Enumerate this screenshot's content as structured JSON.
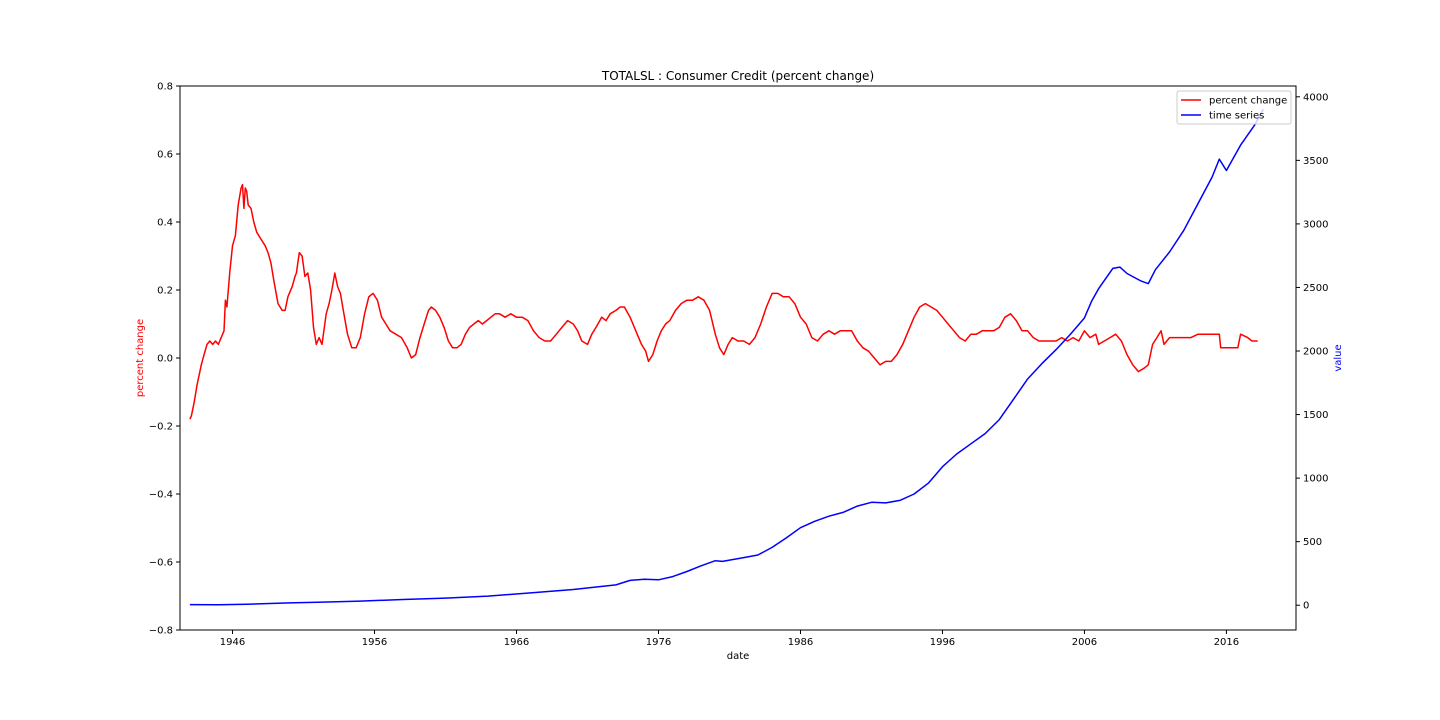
{
  "chart_data": {
    "type": "line",
    "title": "TOTALSL :  Consumer Credit (percent change)",
    "xlabel": "date",
    "y_left_label": "percent change",
    "y_right_label": "value",
    "x_ticks": [
      "1946",
      "1956",
      "1966",
      "1976",
      "1986",
      "1996",
      "2006",
      "2016"
    ],
    "y_left_ticks": [
      "0.8",
      "0.6",
      "0.4",
      "0.2",
      "0.0",
      "−0.2",
      "−0.4",
      "−0.6",
      "−0.8"
    ],
    "y_right_ticks": [
      "0",
      "500",
      "1000",
      "1500",
      "2000",
      "2500",
      "3000",
      "3500",
      "4000"
    ],
    "xlim": [
      1942.3,
      2020.9
    ],
    "y_left_lim": [
      -0.8,
      0.8
    ],
    "y_right_lim": [
      -195,
      4085
    ],
    "legend_position": "upper-right",
    "colors": {
      "percent_change": "#ff0000",
      "time_series": "#0000ff"
    },
    "series": [
      {
        "name": "percent change",
        "axis": "left",
        "points": [
          [
            1943.0,
            -0.18
          ],
          [
            1943.1,
            -0.17
          ],
          [
            1943.3,
            -0.13
          ],
          [
            1943.5,
            -0.08
          ],
          [
            1943.8,
            -0.02
          ],
          [
            1944.0,
            0.01
          ],
          [
            1944.2,
            0.04
          ],
          [
            1944.4,
            0.05
          ],
          [
            1944.6,
            0.04
          ],
          [
            1944.8,
            0.05
          ],
          [
            1945.0,
            0.04
          ],
          [
            1945.2,
            0.06
          ],
          [
            1945.4,
            0.08
          ],
          [
            1945.5,
            0.17
          ],
          [
            1945.6,
            0.15
          ],
          [
            1945.8,
            0.25
          ],
          [
            1946.0,
            0.33
          ],
          [
            1946.2,
            0.36
          ],
          [
            1946.4,
            0.45
          ],
          [
            1946.6,
            0.5
          ],
          [
            1946.7,
            0.51
          ],
          [
            1946.8,
            0.44
          ],
          [
            1946.9,
            0.5
          ],
          [
            1947.0,
            0.49
          ],
          [
            1947.1,
            0.45
          ],
          [
            1947.3,
            0.44
          ],
          [
            1947.5,
            0.4
          ],
          [
            1947.7,
            0.37
          ],
          [
            1948.0,
            0.35
          ],
          [
            1948.3,
            0.33
          ],
          [
            1948.5,
            0.31
          ],
          [
            1948.7,
            0.28
          ],
          [
            1948.9,
            0.23
          ],
          [
            1949.2,
            0.16
          ],
          [
            1949.5,
            0.14
          ],
          [
            1949.7,
            0.14
          ],
          [
            1949.9,
            0.18
          ],
          [
            1950.2,
            0.21
          ],
          [
            1950.4,
            0.24
          ],
          [
            1950.5,
            0.25
          ],
          [
            1950.7,
            0.31
          ],
          [
            1950.9,
            0.3
          ],
          [
            1951.1,
            0.24
          ],
          [
            1951.3,
            0.25
          ],
          [
            1951.5,
            0.2
          ],
          [
            1951.7,
            0.09
          ],
          [
            1951.9,
            0.04
          ],
          [
            1952.1,
            0.06
          ],
          [
            1952.3,
            0.04
          ],
          [
            1952.6,
            0.13
          ],
          [
            1952.8,
            0.16
          ],
          [
            1953.0,
            0.2
          ],
          [
            1953.2,
            0.25
          ],
          [
            1953.4,
            0.21
          ],
          [
            1953.6,
            0.19
          ],
          [
            1953.8,
            0.14
          ],
          [
            1954.1,
            0.07
          ],
          [
            1954.4,
            0.03
          ],
          [
            1954.7,
            0.03
          ],
          [
            1955.0,
            0.06
          ],
          [
            1955.3,
            0.13
          ],
          [
            1955.6,
            0.18
          ],
          [
            1955.9,
            0.19
          ],
          [
            1956.2,
            0.17
          ],
          [
            1956.5,
            0.12
          ],
          [
            1956.8,
            0.1
          ],
          [
            1957.1,
            0.08
          ],
          [
            1957.5,
            0.07
          ],
          [
            1957.9,
            0.06
          ],
          [
            1958.3,
            0.03
          ],
          [
            1958.6,
            0.0
          ],
          [
            1958.9,
            0.01
          ],
          [
            1959.2,
            0.06
          ],
          [
            1959.5,
            0.1
          ],
          [
            1959.8,
            0.14
          ],
          [
            1960.0,
            0.15
          ],
          [
            1960.3,
            0.14
          ],
          [
            1960.6,
            0.12
          ],
          [
            1960.9,
            0.09
          ],
          [
            1961.2,
            0.05
          ],
          [
            1961.5,
            0.03
          ],
          [
            1961.8,
            0.03
          ],
          [
            1962.1,
            0.04
          ],
          [
            1962.4,
            0.07
          ],
          [
            1962.7,
            0.09
          ],
          [
            1963.0,
            0.1
          ],
          [
            1963.3,
            0.11
          ],
          [
            1963.6,
            0.1
          ],
          [
            1963.9,
            0.11
          ],
          [
            1964.2,
            0.12
          ],
          [
            1964.5,
            0.13
          ],
          [
            1964.8,
            0.13
          ],
          [
            1965.2,
            0.12
          ],
          [
            1965.6,
            0.13
          ],
          [
            1966.0,
            0.12
          ],
          [
            1966.4,
            0.12
          ],
          [
            1966.8,
            0.11
          ],
          [
            1967.2,
            0.08
          ],
          [
            1967.6,
            0.06
          ],
          [
            1968.0,
            0.05
          ],
          [
            1968.4,
            0.05
          ],
          [
            1968.8,
            0.07
          ],
          [
            1969.2,
            0.09
          ],
          [
            1969.6,
            0.11
          ],
          [
            1970.0,
            0.1
          ],
          [
            1970.3,
            0.08
          ],
          [
            1970.6,
            0.05
          ],
          [
            1971.0,
            0.04
          ],
          [
            1971.3,
            0.07
          ],
          [
            1971.6,
            0.09
          ],
          [
            1972.0,
            0.12
          ],
          [
            1972.3,
            0.11
          ],
          [
            1972.6,
            0.13
          ],
          [
            1973.0,
            0.14
          ],
          [
            1973.3,
            0.15
          ],
          [
            1973.6,
            0.15
          ],
          [
            1974.0,
            0.12
          ],
          [
            1974.4,
            0.08
          ],
          [
            1974.8,
            0.04
          ],
          [
            1975.1,
            0.02
          ],
          [
            1975.3,
            -0.01
          ],
          [
            1975.6,
            0.01
          ],
          [
            1975.9,
            0.05
          ],
          [
            1976.2,
            0.08
          ],
          [
            1976.5,
            0.1
          ],
          [
            1976.8,
            0.11
          ],
          [
            1977.2,
            0.14
          ],
          [
            1977.6,
            0.16
          ],
          [
            1978.0,
            0.17
          ],
          [
            1978.4,
            0.17
          ],
          [
            1978.8,
            0.18
          ],
          [
            1979.2,
            0.17
          ],
          [
            1979.6,
            0.14
          ],
          [
            1980.0,
            0.07
          ],
          [
            1980.3,
            0.03
          ],
          [
            1980.6,
            0.01
          ],
          [
            1980.9,
            0.04
          ],
          [
            1981.2,
            0.06
          ],
          [
            1981.6,
            0.05
          ],
          [
            1982.0,
            0.05
          ],
          [
            1982.4,
            0.04
          ],
          [
            1982.8,
            0.06
          ],
          [
            1983.2,
            0.1
          ],
          [
            1983.6,
            0.15
          ],
          [
            1984.0,
            0.19
          ],
          [
            1984.4,
            0.19
          ],
          [
            1984.8,
            0.18
          ],
          [
            1985.2,
            0.18
          ],
          [
            1985.6,
            0.16
          ],
          [
            1986.0,
            0.12
          ],
          [
            1986.4,
            0.1
          ],
          [
            1986.8,
            0.06
          ],
          [
            1987.2,
            0.05
          ],
          [
            1987.6,
            0.07
          ],
          [
            1988.0,
            0.08
          ],
          [
            1988.4,
            0.07
          ],
          [
            1988.8,
            0.08
          ],
          [
            1989.2,
            0.08
          ],
          [
            1989.6,
            0.08
          ],
          [
            1990.0,
            0.05
          ],
          [
            1990.4,
            0.03
          ],
          [
            1990.8,
            0.02
          ],
          [
            1991.2,
            0.0
          ],
          [
            1991.6,
            -0.02
          ],
          [
            1992.0,
            -0.01
          ],
          [
            1992.4,
            -0.01
          ],
          [
            1992.8,
            0.01
          ],
          [
            1993.2,
            0.04
          ],
          [
            1993.6,
            0.08
          ],
          [
            1994.0,
            0.12
          ],
          [
            1994.4,
            0.15
          ],
          [
            1994.8,
            0.16
          ],
          [
            1995.2,
            0.15
          ],
          [
            1995.6,
            0.14
          ],
          [
            1996.0,
            0.12
          ],
          [
            1996.4,
            0.1
          ],
          [
            1996.8,
            0.08
          ],
          [
            1997.2,
            0.06
          ],
          [
            1997.6,
            0.05
          ],
          [
            1998.0,
            0.07
          ],
          [
            1998.4,
            0.07
          ],
          [
            1998.8,
            0.08
          ],
          [
            1999.2,
            0.08
          ],
          [
            1999.6,
            0.08
          ],
          [
            2000.0,
            0.09
          ],
          [
            2000.4,
            0.12
          ],
          [
            2000.8,
            0.13
          ],
          [
            2001.2,
            0.11
          ],
          [
            2001.6,
            0.08
          ],
          [
            2002.0,
            0.08
          ],
          [
            2002.4,
            0.06
          ],
          [
            2002.8,
            0.05
          ],
          [
            2003.2,
            0.05
          ],
          [
            2003.6,
            0.05
          ],
          [
            2004.0,
            0.05
          ],
          [
            2004.4,
            0.06
          ],
          [
            2004.8,
            0.05
          ],
          [
            2005.2,
            0.06
          ],
          [
            2005.6,
            0.05
          ],
          [
            2006.0,
            0.08
          ],
          [
            2006.4,
            0.06
          ],
          [
            2006.8,
            0.07
          ],
          [
            2007.0,
            0.04
          ],
          [
            2007.4,
            0.05
          ],
          [
            2007.8,
            0.06
          ],
          [
            2008.2,
            0.07
          ],
          [
            2008.6,
            0.05
          ],
          [
            2009.0,
            0.01
          ],
          [
            2009.4,
            -0.02
          ],
          [
            2009.8,
            -0.04
          ],
          [
            2010.2,
            -0.03
          ],
          [
            2010.5,
            -0.02
          ],
          [
            2010.8,
            0.04
          ],
          [
            2011.1,
            0.06
          ],
          [
            2011.4,
            0.08
          ],
          [
            2011.6,
            0.04
          ],
          [
            2012.0,
            0.06
          ],
          [
            2012.5,
            0.06
          ],
          [
            2013.0,
            0.06
          ],
          [
            2013.5,
            0.06
          ],
          [
            2014.0,
            0.07
          ],
          [
            2014.5,
            0.07
          ],
          [
            2015.0,
            0.07
          ],
          [
            2015.5,
            0.07
          ],
          [
            2015.6,
            0.03
          ],
          [
            2016.0,
            0.03
          ],
          [
            2016.5,
            0.03
          ],
          [
            2016.8,
            0.03
          ],
          [
            2017.0,
            0.07
          ],
          [
            2017.5,
            0.06
          ],
          [
            2017.8,
            0.05
          ],
          [
            2018.2,
            0.05
          ]
        ]
      },
      {
        "name": "time series",
        "axis": "right",
        "points": [
          [
            1943.0,
            5
          ],
          [
            1945.0,
            4
          ],
          [
            1947.0,
            8
          ],
          [
            1950.0,
            18
          ],
          [
            1952.0,
            24
          ],
          [
            1955.0,
            32
          ],
          [
            1958.0,
            45
          ],
          [
            1961.0,
            56
          ],
          [
            1964.0,
            72
          ],
          [
            1967.0,
            97
          ],
          [
            1970.0,
            124
          ],
          [
            1973.0,
            160
          ],
          [
            1974.0,
            195
          ],
          [
            1975.0,
            205
          ],
          [
            1976.0,
            200
          ],
          [
            1977.0,
            225
          ],
          [
            1978.0,
            265
          ],
          [
            1979.0,
            310
          ],
          [
            1980.0,
            350
          ],
          [
            1980.5,
            345
          ],
          [
            1981.0,
            355
          ],
          [
            1982.0,
            375
          ],
          [
            1983.0,
            395
          ],
          [
            1984.0,
            455
          ],
          [
            1985.0,
            530
          ],
          [
            1986.0,
            610
          ],
          [
            1987.0,
            660
          ],
          [
            1988.0,
            700
          ],
          [
            1989.0,
            730
          ],
          [
            1990.0,
            780
          ],
          [
            1991.0,
            810
          ],
          [
            1992.0,
            805
          ],
          [
            1993.0,
            825
          ],
          [
            1994.0,
            875
          ],
          [
            1995.0,
            960
          ],
          [
            1996.0,
            1090
          ],
          [
            1997.0,
            1190
          ],
          [
            1998.0,
            1270
          ],
          [
            1999.0,
            1350
          ],
          [
            2000.0,
            1460
          ],
          [
            2001.0,
            1620
          ],
          [
            2002.0,
            1780
          ],
          [
            2003.0,
            1900
          ],
          [
            2004.0,
            2010
          ],
          [
            2005.0,
            2130
          ],
          [
            2006.0,
            2260
          ],
          [
            2006.5,
            2390
          ],
          [
            2007.0,
            2490
          ],
          [
            2008.0,
            2650
          ],
          [
            2008.5,
            2660
          ],
          [
            2009.0,
            2610
          ],
          [
            2010.0,
            2550
          ],
          [
            2010.5,
            2530
          ],
          [
            2011.0,
            2640
          ],
          [
            2012.0,
            2780
          ],
          [
            2013.0,
            2950
          ],
          [
            2014.0,
            3160
          ],
          [
            2015.0,
            3370
          ],
          [
            2015.5,
            3510
          ],
          [
            2016.0,
            3420
          ],
          [
            2017.0,
            3620
          ],
          [
            2018.0,
            3780
          ],
          [
            2018.6,
            3900
          ]
        ]
      }
    ]
  }
}
